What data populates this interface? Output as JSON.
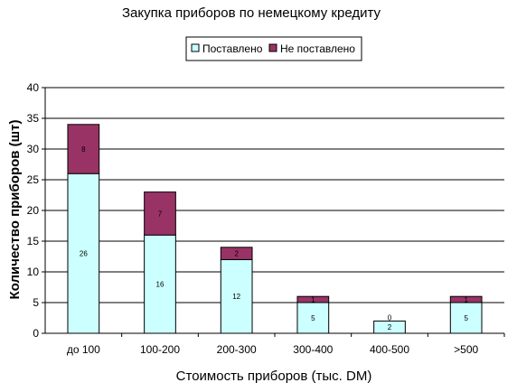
{
  "chart_data": {
    "type": "bar",
    "stacked": true,
    "title": "Закупка приборов по немецкому кредиту",
    "xlabel": "Стоимость приборов (тыс. DM)",
    "ylabel": "Количество приборов (шт)",
    "categories": [
      "до 100",
      "100-200",
      "200-300",
      "300-400",
      "400-500",
      ">500"
    ],
    "series": [
      {
        "name": "Поставлено",
        "values": [
          26,
          16,
          12,
          5,
          2,
          5
        ],
        "color": "#ccffff"
      },
      {
        "name": "Не поставлено",
        "values": [
          8,
          7,
          2,
          1,
          0,
          1
        ],
        "color": "#993366"
      }
    ],
    "ylim": [
      0,
      40
    ],
    "yticks": [
      0,
      5,
      10,
      15,
      20,
      25,
      30,
      35,
      40
    ],
    "grid": true,
    "legend_position": "top-center"
  }
}
